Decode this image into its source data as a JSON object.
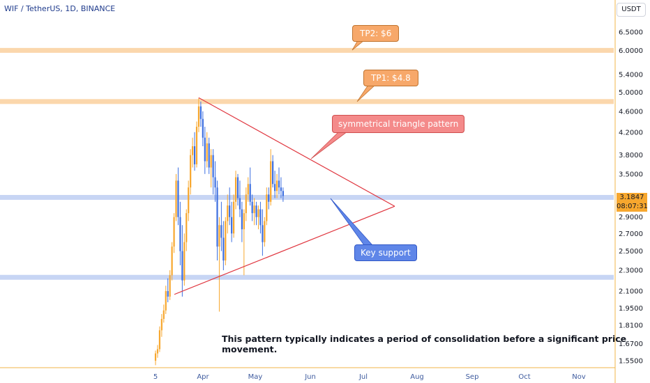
{
  "header": {
    "title": "WIF / TetherUS, 1D, BINANCE",
    "currency": "USDT"
  },
  "chart_data": {
    "type": "candlestick",
    "symbol": "WIF / TetherUS",
    "interval": "1D",
    "exchange": "BINANCE",
    "y_scale": "log",
    "ylim": [
      1.5,
      7.2
    ],
    "y_ticks": [
      "6.5000",
      "6.0000",
      "5.4000",
      "5.0000",
      "4.6000",
      "4.2000",
      "3.8000",
      "3.5000",
      "2.9000",
      "2.7000",
      "2.5000",
      "2.3000",
      "2.1000",
      "1.9500",
      "1.8100",
      "1.6700",
      "1.5500"
    ],
    "x_ticks": [
      "5",
      "Apr",
      "May",
      "Jun",
      "Jul",
      "Aug",
      "Sep",
      "Oct",
      "Nov"
    ],
    "last_price": "3.1847",
    "countdown": "08:07:31",
    "candles": [
      [
        1.55,
        1.62,
        1.52,
        1.6
      ],
      [
        1.6,
        1.66,
        1.57,
        1.63
      ],
      [
        1.63,
        1.8,
        1.61,
        1.77
      ],
      [
        1.77,
        1.9,
        1.72,
        1.86
      ],
      [
        1.86,
        1.98,
        1.83,
        1.93
      ],
      [
        1.93,
        2.15,
        1.9,
        2.1
      ],
      [
        2.1,
        2.22,
        2.0,
        2.05
      ],
      [
        2.05,
        2.3,
        2.02,
        2.25
      ],
      [
        2.25,
        2.6,
        2.2,
        2.55
      ],
      [
        2.55,
        2.95,
        2.48,
        2.9
      ],
      [
        2.9,
        3.5,
        2.85,
        3.4
      ],
      [
        3.4,
        3.6,
        2.8,
        2.9
      ],
      [
        2.9,
        3.1,
        2.35,
        2.5
      ],
      [
        2.5,
        2.8,
        2.05,
        2.2
      ],
      [
        2.2,
        2.7,
        2.15,
        2.6
      ],
      [
        2.6,
        3.0,
        2.5,
        2.95
      ],
      [
        2.95,
        3.4,
        2.85,
        3.3
      ],
      [
        3.3,
        3.9,
        3.2,
        3.8
      ],
      [
        3.8,
        4.1,
        3.6,
        3.95
      ],
      [
        3.95,
        4.2,
        3.55,
        3.65
      ],
      [
        3.65,
        4.4,
        3.6,
        4.3
      ],
      [
        4.3,
        4.88,
        4.2,
        4.7
      ],
      [
        4.7,
        4.8,
        4.3,
        4.45
      ],
      [
        4.45,
        4.6,
        3.95,
        4.1
      ],
      [
        4.1,
        4.3,
        3.5,
        3.7
      ],
      [
        3.7,
        4.2,
        3.6,
        4.0
      ],
      [
        4.0,
        4.1,
        3.5,
        3.6
      ],
      [
        3.6,
        3.9,
        3.3,
        3.8
      ],
      [
        3.8,
        3.9,
        3.2,
        3.45
      ],
      [
        3.45,
        3.7,
        3.1,
        3.3
      ],
      [
        3.3,
        3.4,
        2.4,
        2.55
      ],
      [
        2.55,
        2.9,
        1.92,
        2.8
      ],
      [
        2.8,
        3.1,
        2.5,
        2.65
      ],
      [
        2.65,
        2.85,
        2.3,
        2.4
      ],
      [
        2.4,
        2.9,
        2.35,
        2.85
      ],
      [
        2.85,
        3.2,
        2.7,
        3.05
      ],
      [
        3.05,
        3.3,
        2.8,
        2.9
      ],
      [
        2.9,
        3.1,
        2.6,
        2.7
      ],
      [
        2.7,
        3.2,
        2.65,
        3.1
      ],
      [
        3.1,
        3.55,
        3.0,
        3.45
      ],
      [
        3.45,
        3.5,
        3.05,
        3.15
      ],
      [
        3.15,
        3.4,
        2.9,
        3.0
      ],
      [
        3.0,
        3.1,
        2.6,
        2.75
      ],
      [
        2.75,
        3.0,
        2.25,
        2.95
      ],
      [
        2.95,
        3.3,
        2.85,
        3.2
      ],
      [
        3.2,
        3.45,
        3.1,
        3.35
      ],
      [
        3.35,
        3.6,
        3.05,
        3.1
      ],
      [
        3.1,
        3.2,
        2.85,
        2.95
      ],
      [
        2.95,
        3.15,
        2.8,
        3.05
      ],
      [
        3.05,
        3.1,
        2.8,
        2.9
      ],
      [
        2.9,
        3.05,
        2.75,
        3.0
      ],
      [
        3.0,
        3.1,
        2.7,
        2.8
      ],
      [
        2.8,
        3.0,
        2.45,
        2.6
      ],
      [
        2.6,
        2.9,
        2.55,
        2.85
      ],
      [
        2.85,
        3.3,
        2.8,
        3.2
      ],
      [
        3.2,
        3.3,
        3.0,
        3.1
      ],
      [
        3.1,
        3.9,
        3.05,
        3.7
      ],
      [
        3.7,
        3.8,
        3.3,
        3.35
      ],
      [
        3.35,
        3.55,
        3.15,
        3.25
      ],
      [
        3.25,
        3.5,
        3.15,
        3.4
      ],
      [
        3.4,
        3.6,
        3.2,
        3.3
      ],
      [
        3.3,
        3.45,
        3.15,
        3.25
      ],
      [
        3.25,
        3.3,
        3.1,
        3.18
      ]
    ],
    "horizontal_levels": [
      {
        "value": 6.0,
        "label": "TP2: $6"
      },
      {
        "value": 4.8,
        "label": "TP1: $4.8"
      },
      {
        "value": 3.16,
        "label": "Key support"
      },
      {
        "value": 2.23,
        "label": ""
      }
    ],
    "triangle": {
      "apex_date_index": 117,
      "apex_value": 3.04,
      "top_value": 4.88,
      "bottom_value": 2.07
    },
    "annotations": {
      "tp2": "TP2: $6",
      "tp1": "TP1: $4.8",
      "pattern": "symmetrical triangle pattern",
      "support": "Key support",
      "note": "This pattern typically indicates a period of consolidation before a significant price movement."
    },
    "colors": {
      "up": "#f7a72e",
      "down": "#3d6fe0",
      "triangle": "#e0363f",
      "tp_band": "#fbd5a8",
      "support_band": "#c4d3f3",
      "callout_orange": "#f7a86a",
      "callout_red": "#f48a8a",
      "callout_blue": "#5f86e8"
    }
  }
}
